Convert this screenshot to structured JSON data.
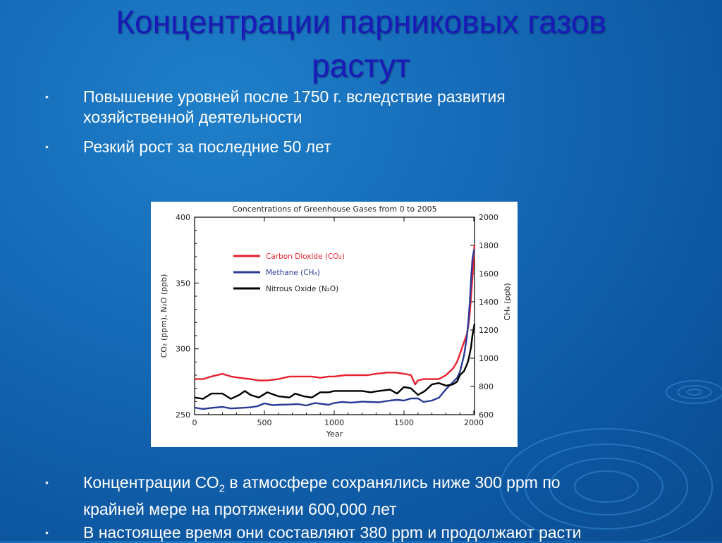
{
  "slide": {
    "title_line1": "Концентрации парниковых газов",
    "title_line2": "растут",
    "bullets_top": [
      {
        "line1": "Повышение уровней после 1750 г. вследствие развития",
        "line2": "хозяйственной деятельности"
      },
      {
        "line1": "Резкий рост за последние 50 лет",
        "line2": ""
      }
    ],
    "bullets_bottom": [
      {
        "pre": "Концентрации СО",
        "sub": "2",
        "post": " в атмосфере сохранялись ниже 300 ppm по",
        "line2": "крайней мере на протяжении  600,000 лет"
      },
      {
        "pre": "В настоящее время они составляют 380 ppm и продолжают расти",
        "sub": "",
        "post": "",
        "line2": ""
      }
    ],
    "bullet_glyph": "•"
  },
  "chart_data": {
    "type": "line",
    "title": "Concentrations of Greenhouse Gases from 0 to 2005",
    "xlabel": "Year",
    "ylabel_left": "CO₂ (ppm), N₂O (ppb)",
    "ylabel_right": "CH₄ (ppb)",
    "xlim": [
      0,
      2005
    ],
    "ylim_left": [
      250,
      400
    ],
    "ylim_right": [
      600,
      2000
    ],
    "x_ticks": [
      0,
      500,
      1000,
      1500,
      2000
    ],
    "y_ticks_left": [
      250,
      300,
      350,
      400
    ],
    "y_ticks_right": [
      600,
      800,
      1000,
      1200,
      1400,
      1600,
      1800,
      2000
    ],
    "legend_position": "upper-left",
    "grid": false,
    "series": [
      {
        "name": "Carbon Dioxide (CO₂)",
        "color": "#e8212e",
        "axis": "left",
        "x": [
          0,
          60,
          120,
          200,
          260,
          320,
          400,
          460,
          520,
          600,
          680,
          760,
          840,
          900,
          960,
          1000,
          1080,
          1160,
          1240,
          1300,
          1380,
          1440,
          1500,
          1550,
          1580,
          1600,
          1640,
          1700,
          1750,
          1800,
          1850,
          1880,
          1900,
          1930,
          1950,
          1960,
          1970,
          1980,
          1990,
          2000,
          2005
        ],
        "y": [
          277,
          277,
          279,
          281,
          279,
          278,
          277,
          276,
          276,
          277,
          279,
          279,
          279,
          278,
          279,
          279,
          280,
          280,
          280,
          281,
          282,
          282,
          281,
          280,
          273,
          276,
          277,
          277,
          277,
          280,
          285,
          290,
          296,
          305,
          311,
          317,
          326,
          339,
          354,
          370,
          379
        ]
      },
      {
        "name": "Methane (CH₄)",
        "color": "#2b3a96",
        "axis": "right",
        "x": [
          0,
          60,
          120,
          200,
          260,
          320,
          400,
          450,
          500,
          560,
          600,
          680,
          740,
          800,
          860,
          900,
          960,
          1000,
          1060,
          1120,
          1200,
          1260,
          1320,
          1400,
          1450,
          1500,
          1550,
          1600,
          1640,
          1700,
          1750,
          1800,
          1850,
          1880,
          1900,
          1930,
          1950,
          1960,
          1970,
          1980,
          1990,
          2000,
          2005
        ],
        "y": [
          650,
          640,
          648,
          655,
          644,
          647,
          652,
          660,
          680,
          667,
          670,
          672,
          675,
          665,
          682,
          678,
          670,
          683,
          690,
          685,
          692,
          690,
          688,
          700,
          705,
          700,
          715,
          715,
          690,
          700,
          720,
          780,
          830,
          860,
          900,
          1020,
          1150,
          1250,
          1380,
          1550,
          1700,
          1760,
          1774
        ]
      },
      {
        "name": "Nitrous Oxide (N₂O)",
        "color": "#000000",
        "axis": "left",
        "x": [
          0,
          60,
          120,
          200,
          260,
          320,
          360,
          400,
          460,
          520,
          600,
          680,
          720,
          780,
          840,
          900,
          960,
          1000,
          1060,
          1120,
          1200,
          1260,
          1320,
          1400,
          1450,
          1500,
          1550,
          1600,
          1650,
          1700,
          1750,
          1800,
          1850,
          1880,
          1900,
          1930,
          1950,
          1960,
          1970,
          1980,
          1990,
          2000,
          2005
        ],
        "y": [
          263,
          262,
          266,
          266,
          262,
          265,
          268,
          265,
          263,
          267,
          264,
          263,
          266,
          264,
          263,
          267,
          267,
          268,
          268,
          268,
          268,
          267,
          268,
          269,
          266,
          271,
          270,
          265,
          268,
          273,
          274,
          272,
          273,
          275,
          280,
          283,
          288,
          291,
          296,
          301,
          310,
          316,
          319
        ]
      }
    ]
  }
}
